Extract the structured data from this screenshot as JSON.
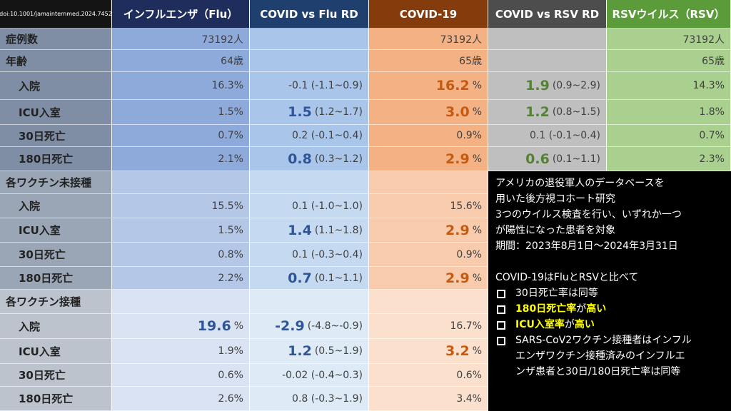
{
  "source": "doi:10.1001/jamainternmed.2024.7452",
  "columns": [
    "インフルエンザ（Flu）",
    "COVID vs Flu RD",
    "COVID-19",
    "COVID vs RSV RD",
    "RSVウイルス（RSV）"
  ],
  "summary_rows": [
    {
      "label": "症例数",
      "cells": [
        "73192人",
        null,
        "73192人",
        null,
        "73192人"
      ]
    },
    {
      "label": "年齢",
      "cells": [
        "64歳",
        null,
        "65歳",
        null,
        "65歳"
      ]
    }
  ],
  "sections": [
    {
      "rows": [
        {
          "label": "入院",
          "cells": [
            "16.3%",
            "-0.1 (-1.1~0.9)",
            {
              "em": "16.2",
              "rest": "%"
            },
            {
              "em": "1.9",
              "rest": "(0.9~2.9)"
            },
            "14.3%"
          ]
        },
        {
          "label": "ICU入室",
          "cells": [
            "1.5%",
            {
              "em": "1.5",
              "rest": "(1.2~1.7)"
            },
            {
              "em": "3.0",
              "rest": "%"
            },
            {
              "em": "1.2",
              "rest": "(0.8~1.5)"
            },
            "1.8%"
          ]
        },
        {
          "label": "30日死亡",
          "cells": [
            "0.7%",
            "0.2 (-0.1~0.4)",
            "0.9%",
            "0.1 (-0.1~0.4)",
            "0.7%"
          ]
        },
        {
          "label": "180日死亡",
          "cells": [
            "2.1%",
            {
              "em": "0.8",
              "rest": "(0.3~1.2)"
            },
            {
              "em": "2.9",
              "rest": "%"
            },
            {
              "em": "0.6",
              "rest": "(0.1~1.1)"
            },
            "2.3%"
          ]
        }
      ]
    },
    {
      "title": "各ワクチン未接種",
      "rows": [
        {
          "label": "入院",
          "cells": [
            "15.5%",
            "0.1 (-1.0~1.0)",
            "15.6%"
          ]
        },
        {
          "label": "ICU入室",
          "cells": [
            "1.5%",
            {
              "em": "1.4",
              "rest": "(1.1~1.8)"
            },
            {
              "em": "2.9",
              "rest": "%"
            }
          ]
        },
        {
          "label": "30日死亡",
          "cells": [
            "0.8%",
            "0.1 (-0.3~0.4)",
            "0.9%"
          ]
        },
        {
          "label": "180日死亡",
          "cells": [
            "2.2%",
            {
              "em": "0.7",
              "rest": "(0.1~1.1)"
            },
            {
              "em": "2.9",
              "rest": "%"
            }
          ]
        }
      ]
    },
    {
      "title": "各ワクチン接種",
      "rows": [
        {
          "label": "入院",
          "cells": [
            {
              "em": "19.6",
              "rest": "%"
            },
            {
              "em": "-2.9",
              "rest": "(-4.8~-0.9)"
            },
            "16.7%"
          ]
        },
        {
          "label": "ICU入室",
          "cells": [
            "1.9%",
            {
              "em": "1.2",
              "rest": "(0.5~1.9)"
            },
            {
              "em": "3.2",
              "rest": "%"
            }
          ]
        },
        {
          "label": "30日死亡",
          "cells": [
            "0.6%",
            "-0.02 (-0.4~0.3)",
            "0.6%"
          ]
        },
        {
          "label": "180日死亡",
          "cells": [
            "2.6%",
            "0.8 (-0.3~1.9)",
            "3.4%"
          ]
        }
      ]
    }
  ],
  "note": {
    "lines": [
      "アメリカの退役軍人のデータベースを",
      "用いた後方視コホート研究",
      "3つのウイルス検査を行い、いずれか一つ",
      "が陽性になった患者を対象",
      "期間：2023年8月1日～2024年3月31日"
    ],
    "lead": "COVID-19はFluとRSVと比べて",
    "bullets": [
      [
        {
          "text": "30日死亡率は同等",
          "highlight": false
        }
      ],
      [
        {
          "text": "180日死亡率",
          "highlight": true
        },
        {
          "text": "が",
          "highlight": false
        },
        {
          "text": "高い",
          "highlight": true
        }
      ],
      [
        {
          "text": "ICU入室率",
          "highlight": true
        },
        {
          "text": "が",
          "highlight": false
        },
        {
          "text": "高い",
          "highlight": true
        }
      ],
      [
        {
          "text": "SARS-CoV2ワクチン接種者はインフル",
          "highlight": false
        },
        {
          "text": "エンザワクチン接種済みのインフルエ",
          "highlight": false
        },
        {
          "text": "ンザ患者と30日/180日死亡率は同等",
          "highlight": false
        }
      ]
    ]
  }
}
